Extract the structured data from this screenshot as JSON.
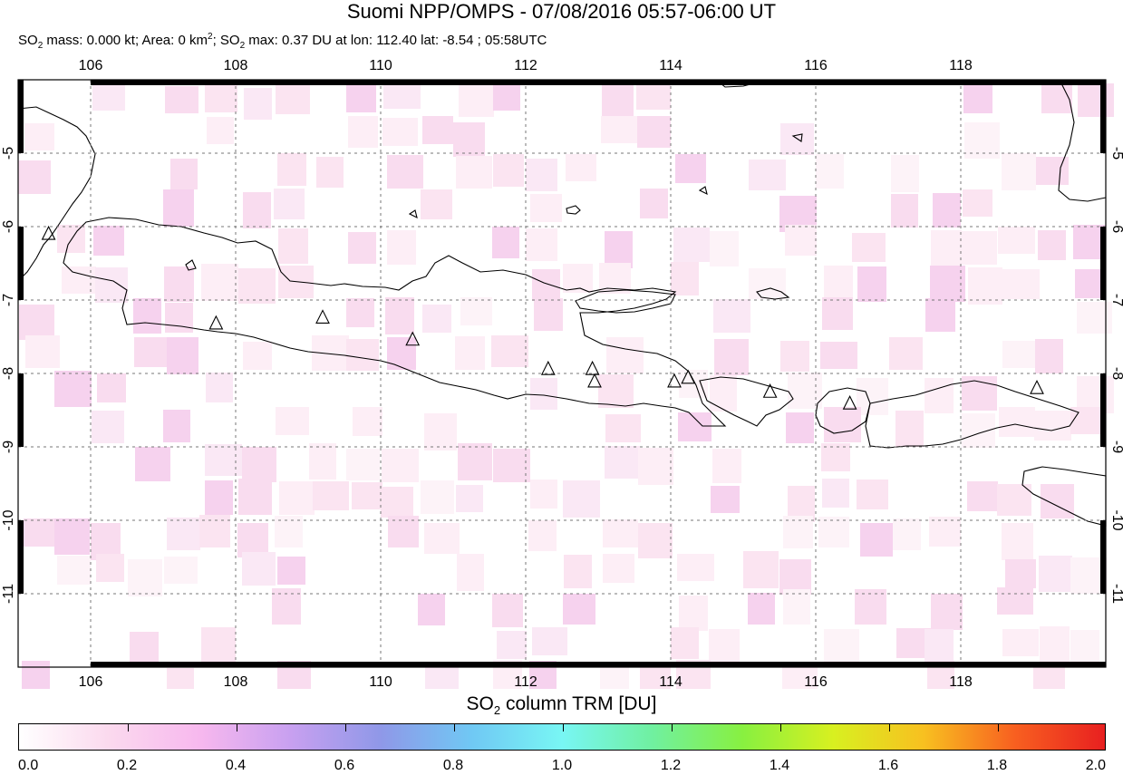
{
  "title": "Suomi NPP/OMPS - 07/08/2016 05:57-06:00 UT",
  "subtitle": {
    "so2_label": "SO",
    "so2_sub": "2",
    "mass_text": " mass: 0.000 kt; Area: 0 km",
    "area_sup": "2",
    "max_text": "; SO",
    "max_sub": "2",
    "max_rest": " max: 0.37 DU at lon: 112.40 lat: -8.54 ; 05:58UTC"
  },
  "map": {
    "lon_range": [
      105.0,
      120.0
    ],
    "lat_range": [
      -12.0,
      -4.0
    ],
    "lon_ticks": [
      "106",
      "108",
      "110",
      "112",
      "114",
      "116",
      "118"
    ],
    "lat_ticks": [
      "-5",
      "-6",
      "-7",
      "-8",
      "-9",
      "-10",
      "-11"
    ],
    "grid": true,
    "volcanoes": [
      {
        "lon": 105.42,
        "lat": -6.1
      },
      {
        "lon": 107.73,
        "lat": -7.32
      },
      {
        "lon": 109.2,
        "lat": -7.24
      },
      {
        "lon": 110.44,
        "lat": -7.54
      },
      {
        "lon": 112.31,
        "lat": -7.94
      },
      {
        "lon": 112.92,
        "lat": -7.94
      },
      {
        "lon": 112.95,
        "lat": -8.11
      },
      {
        "lon": 114.05,
        "lat": -8.11
      },
      {
        "lon": 114.24,
        "lat": -8.06
      },
      {
        "lon": 115.37,
        "lat": -8.25
      },
      {
        "lon": 116.47,
        "lat": -8.41
      },
      {
        "lon": 119.05,
        "lat": -8.2
      }
    ]
  },
  "colorbar": {
    "title_main": "SO",
    "title_sub": "2",
    "title_rest": " column TRM [DU]",
    "range": [
      0.0,
      2.0
    ],
    "ticks": [
      "0.0",
      "0.2",
      "0.4",
      "0.6",
      "0.8",
      "1.0",
      "1.2",
      "1.4",
      "1.6",
      "1.8",
      "2.0"
    ],
    "colors": [
      "#ffffff",
      "#fbd9ee",
      "#f7b8ee",
      "#c8a0f0",
      "#8f98e8",
      "#70c8f4",
      "#78f6f4",
      "#70f0a0",
      "#88f040",
      "#d8f020",
      "#f8c020",
      "#f86020",
      "#e82020"
    ]
  }
}
